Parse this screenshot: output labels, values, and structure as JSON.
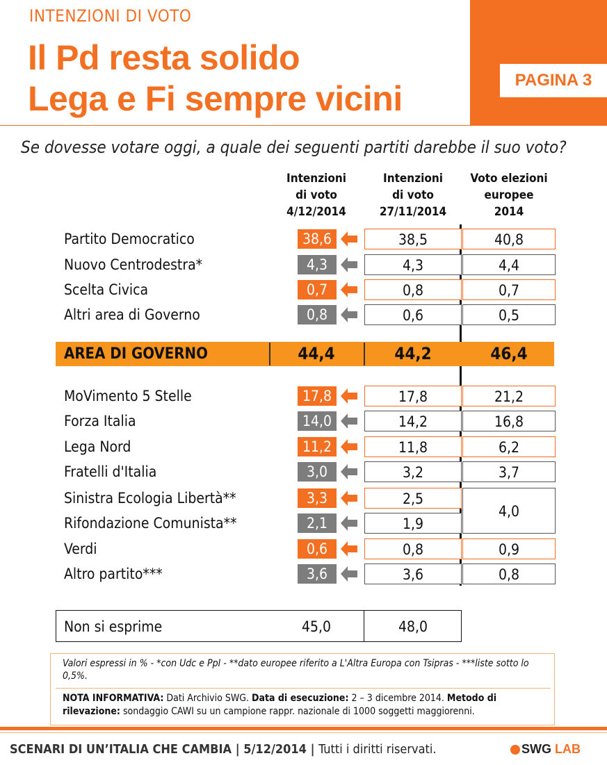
{
  "header": {
    "kicker": "INTENZIONI DI VOTO",
    "title_line1": "Il Pd resta solido",
    "title_line2": "Lega e Fi sempre vicini",
    "page_badge": "PAGINA 3"
  },
  "question": "Se dovesse votare oggi, a quale dei seguenti partiti darebbe il suo voto?",
  "columns": [
    {
      "line1": "Intenzioni",
      "line2": "di voto",
      "line3": "4/12/2014"
    },
    {
      "line1": "Intenzioni",
      "line2": "di voto",
      "line3": "27/11/2014"
    },
    {
      "line1": "Voto elezioni",
      "line2": "europee",
      "line3": "2014"
    }
  ],
  "rows": [
    {
      "party": "Partito Democratico",
      "current": "38,6",
      "previous": "38,5",
      "europee": "40,8",
      "color": "orange"
    },
    {
      "party": "Nuovo Centrodestra*",
      "current": "4,3",
      "previous": "4,3",
      "europee": "4,4",
      "color": "gray"
    },
    {
      "party": "Scelta Civica",
      "current": "0,7",
      "previous": "0,8",
      "europee": "0,7",
      "color": "orange"
    },
    {
      "party": "Altri area di Governo",
      "current": "0,8",
      "previous": "0,6",
      "europee": "0,5",
      "color": "gray"
    },
    {
      "party": "MoVimento 5 Stelle",
      "current": "17,8",
      "previous": "17,8",
      "europee": "21,2",
      "color": "orange"
    },
    {
      "party": "Forza Italia",
      "current": "14,0",
      "previous": "14,2",
      "europee": "16,8",
      "color": "gray"
    },
    {
      "party": "Lega Nord",
      "current": "11,2",
      "previous": "11,8",
      "europee": "6,2",
      "color": "orange"
    },
    {
      "party": "Fratelli d'Italia",
      "current": "3,0",
      "previous": "3,2",
      "europee": "3,7",
      "color": "gray"
    },
    {
      "party": "Sinistra Ecologia Libertà**",
      "current": "3,3",
      "previous": "2,5",
      "color": "orange"
    },
    {
      "party": "Rifondazione Comunista**",
      "current": "2,1",
      "previous": "1,9",
      "color": "gray"
    },
    {
      "party": "Verdi",
      "current": "0,6",
      "previous": "0,8",
      "europee": "0,9",
      "color": "orange"
    },
    {
      "party": "Altro partito***",
      "current": "3,6",
      "previous": "3,6",
      "europee": "0,8",
      "color": "gray"
    }
  ],
  "merged_europee": "4,0",
  "area_governo": {
    "label": "AREA DI GOVERNO",
    "current": "44,4",
    "previous": "44,2",
    "europee": "46,4"
  },
  "non_si_esprime": {
    "label": "Non si esprime",
    "current": "45,0",
    "previous": "48,0"
  },
  "footnote": {
    "line1": "Valori espressi in % - *con Udc e PpI  - **dato europee riferito a L'Altra Europa con Tsipras - ***liste sotto lo 0,5%.",
    "nota_label": "NOTA INFORMATIVA:",
    "nota_text": " Dati Archivio SWG. ",
    "data_label": "Data di esecuzione:",
    "data_text": " 2 – 3 dicembre 2014. ",
    "metodo_label": "Metodo di rilevazione:",
    "metodo_text": " sondaggio CAWI su un campione rappr. nazionale di 1000 soggetti maggiorenni."
  },
  "footer": {
    "series": "SCENARI DI UN’ITALIA CHE CAMBIA",
    "sep1": " | ",
    "date": "5/12/2014",
    "sep2": " | ",
    "rights": "Tutti i diritti riservati.",
    "logo_swg": "SWG",
    "logo_lab": "LAB"
  },
  "colors": {
    "orange": "#f36f21",
    "gray": "#7d7d7d",
    "band": "#f7941d"
  }
}
